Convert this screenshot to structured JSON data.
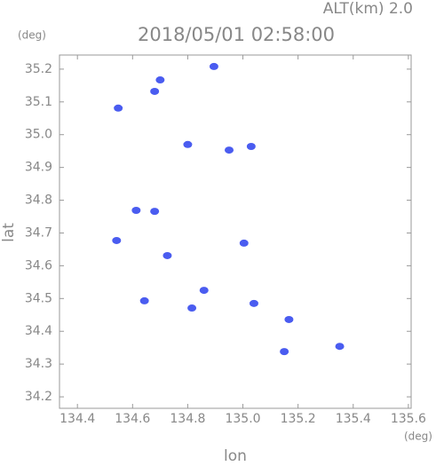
{
  "chart_data": {
    "type": "scatter",
    "header": "ALT(km) 2.0",
    "title": "2018/05/01 02:58:00",
    "xlabel": "lon",
    "ylabel": "lat",
    "xunit": "(deg)",
    "yunit": "(deg)",
    "x": [
      134.548,
      134.7,
      134.68,
      134.895,
      134.8,
      134.95,
      135.03,
      134.613,
      134.68,
      135.004,
      134.542,
      134.726,
      134.859,
      134.815,
      134.643,
      135.04,
      135.167,
      135.15,
      135.351
    ],
    "values": [
      35.081,
      35.167,
      35.132,
      35.208,
      34.97,
      34.953,
      34.964,
      34.769,
      34.766,
      34.669,
      34.677,
      34.631,
      34.525,
      34.471,
      34.493,
      34.485,
      34.436,
      34.338,
      34.354
    ],
    "color": "#4a5cf0",
    "xlim": [
      134.335,
      135.61
    ],
    "ylim": [
      34.165,
      35.243
    ],
    "xticks": [
      134.4,
      134.6,
      134.8,
      {
        "value": 135.0,
        "label": "135.0"
      },
      135.2,
      135.4,
      135.6
    ],
    "yticks": [
      34.2,
      34.3,
      34.4,
      34.5,
      34.6,
      34.7,
      34.8,
      34.9,
      {
        "value": 35.0,
        "label": "35.0"
      },
      35.1,
      35.2
    ]
  }
}
